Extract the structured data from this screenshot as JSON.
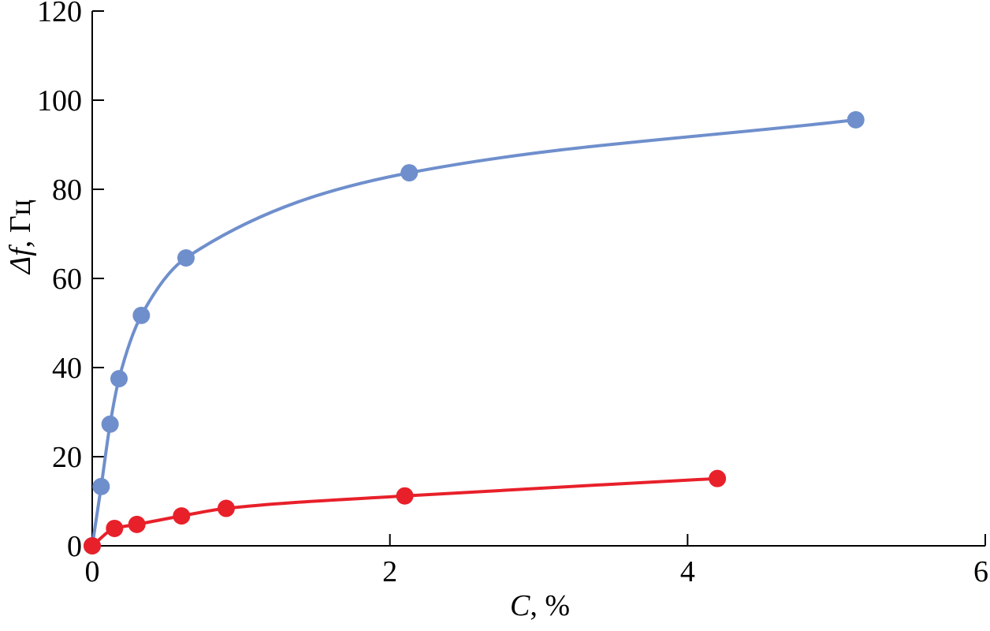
{
  "chart_data": {
    "type": "line",
    "xlabel": {
      "var": "C",
      "sep": ", ",
      "unit": "%"
    },
    "ylabel": {
      "var": "Δf",
      "sep": ", ",
      "unit": "Гц"
    },
    "xlim": [
      0,
      6
    ],
    "ylim": [
      0,
      120
    ],
    "xticks": [
      "0",
      "2",
      "4",
      "6"
    ],
    "yticks": [
      "0",
      "20",
      "40",
      "60",
      "80",
      "100",
      "120"
    ],
    "grid": false,
    "series": [
      {
        "color": "#6f8fcc",
        "points": [
          [
            0,
            0
          ],
          [
            0.06,
            13.3
          ],
          [
            0.12,
            27.3
          ],
          [
            0.18,
            37.5
          ],
          [
            0.33,
            51.7
          ],
          [
            0.63,
            64.6
          ],
          [
            2.13,
            83.7
          ],
          [
            5.13,
            95.6
          ]
        ]
      },
      {
        "color": "#e8202a",
        "points": [
          [
            0,
            0
          ],
          [
            0.15,
            3.9
          ],
          [
            0.3,
            4.8
          ],
          [
            0.6,
            6.7
          ],
          [
            0.9,
            8.4
          ],
          [
            2.1,
            11.2
          ],
          [
            4.2,
            15.1
          ]
        ]
      }
    ]
  }
}
